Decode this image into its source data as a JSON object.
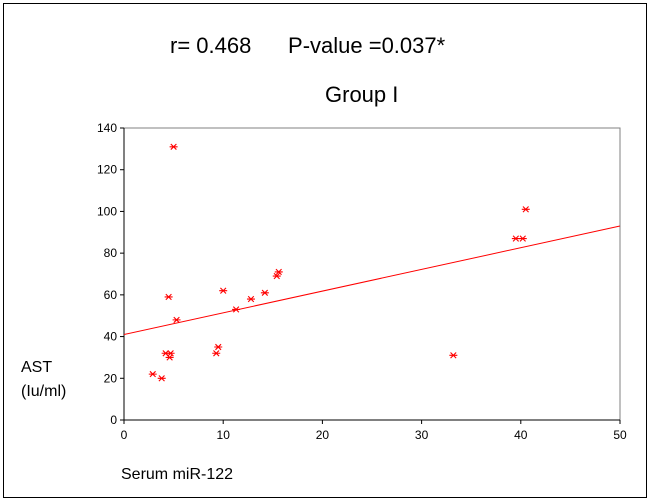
{
  "chart_data": {
    "type": "scatter",
    "title": "Group I",
    "annotation": "r= 0.468      P-value =0.037*",
    "xlabel": "Serum miR-122",
    "ylabel_lines": [
      "AST",
      "(Iu/ml)"
    ],
    "xlim": [
      0,
      50
    ],
    "ylim": [
      0,
      140
    ],
    "xticks": [
      0,
      10,
      20,
      30,
      40,
      50
    ],
    "yticks": [
      0,
      20,
      40,
      60,
      80,
      100,
      120,
      140
    ],
    "marker": "asterisk",
    "color": "#ff0000",
    "points": [
      {
        "x": 5.0,
        "y": 131
      },
      {
        "x": 40.5,
        "y": 101
      },
      {
        "x": 39.5,
        "y": 87
      },
      {
        "x": 40.2,
        "y": 87
      },
      {
        "x": 15.6,
        "y": 71
      },
      {
        "x": 15.4,
        "y": 69
      },
      {
        "x": 14.2,
        "y": 61
      },
      {
        "x": 10.0,
        "y": 62
      },
      {
        "x": 12.8,
        "y": 58
      },
      {
        "x": 4.5,
        "y": 59
      },
      {
        "x": 11.3,
        "y": 53
      },
      {
        "x": 5.3,
        "y": 48
      },
      {
        "x": 9.5,
        "y": 35
      },
      {
        "x": 9.3,
        "y": 32
      },
      {
        "x": 4.2,
        "y": 32
      },
      {
        "x": 4.7,
        "y": 32
      },
      {
        "x": 4.6,
        "y": 30
      },
      {
        "x": 2.9,
        "y": 22
      },
      {
        "x": 3.8,
        "y": 20
      },
      {
        "x": 33.2,
        "y": 31
      }
    ],
    "fit_line": {
      "x": [
        0,
        50
      ],
      "y": [
        41,
        93
      ]
    }
  }
}
